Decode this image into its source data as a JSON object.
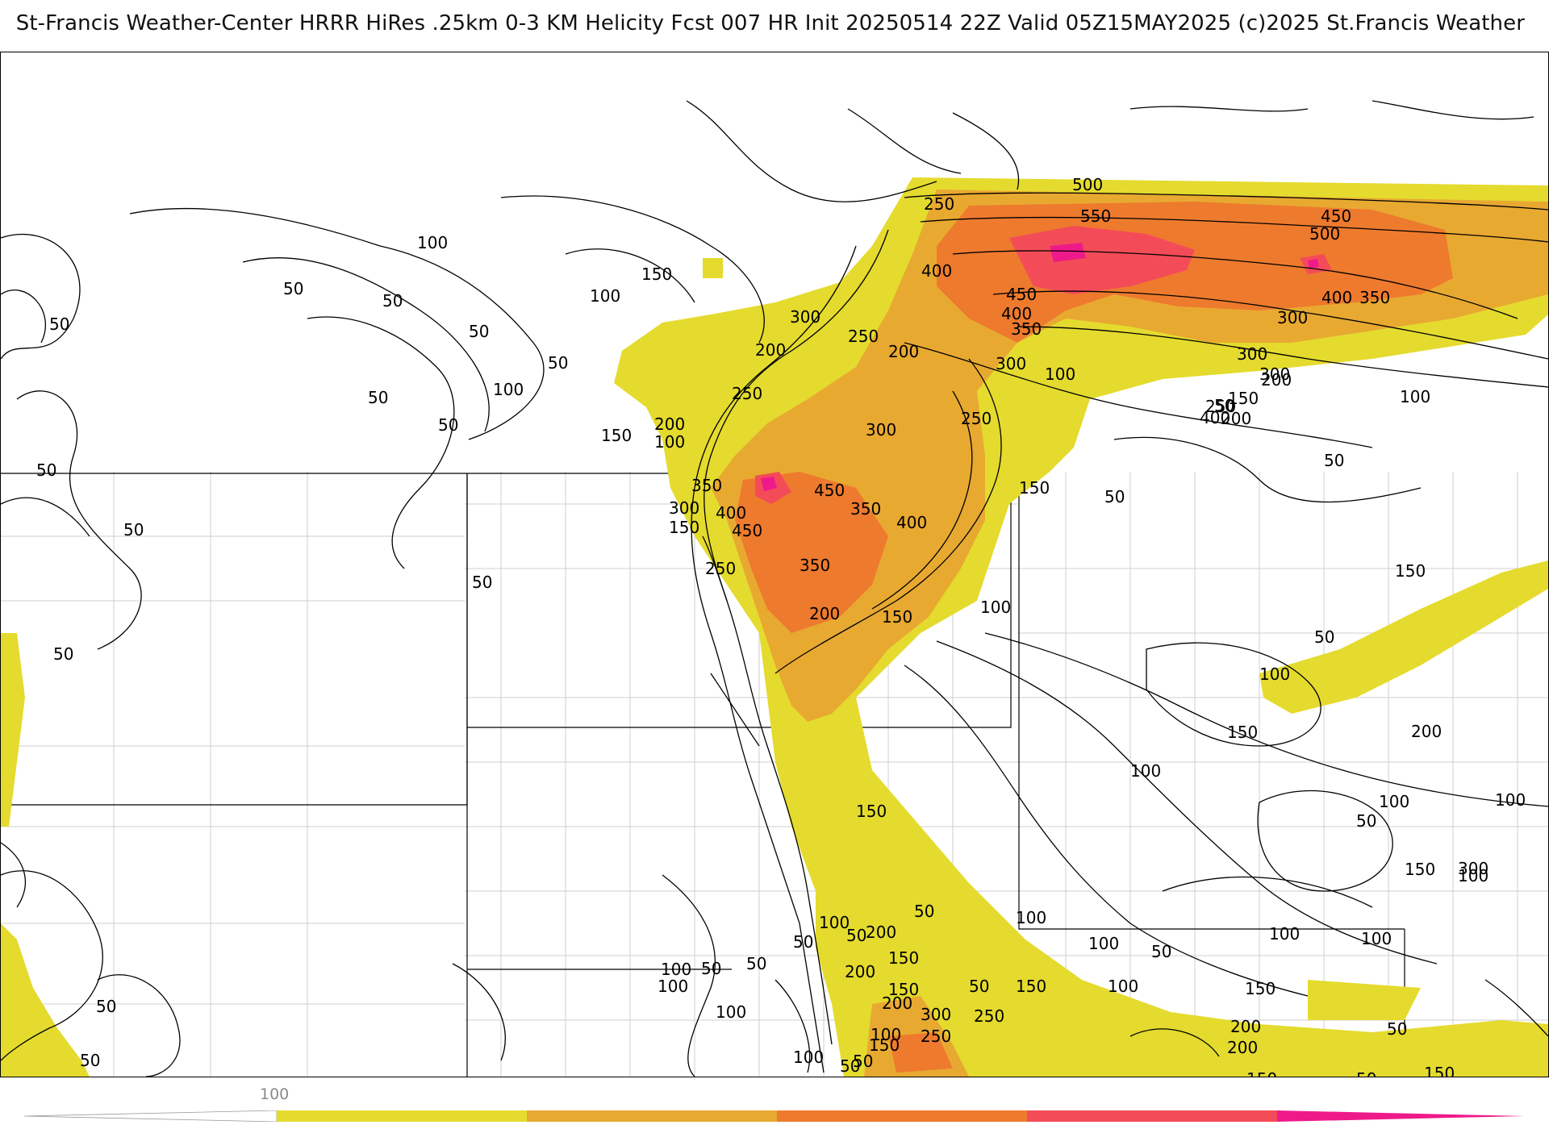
{
  "header": {
    "title": "St-Francis Weather-Center HRRR HiRes .25km 0-3 KM Helicity Fcst 007 HR Init 20250514 22Z  Valid 05Z15MAY2025     (c)2025 St.Francis Weather"
  },
  "colors": {
    "shade_100": "#e4db2e",
    "shade_250": "#e8a931",
    "shade_400": "#ee7a2e",
    "shade_550": "#f34c58",
    "shade_700": "#ef1a8a",
    "contour": "#000000",
    "borders": "#b8b8b8"
  },
  "colorbar": {
    "label": "100",
    "segments": [
      {
        "name": "below-100",
        "color": "#ffffff"
      },
      {
        "name": "100-250",
        "color": "#e4db2e"
      },
      {
        "name": "250-400",
        "color": "#e8a931"
      },
      {
        "name": "400-550",
        "color": "#ee7a2e"
      },
      {
        "name": "550-700",
        "color": "#f34c58"
      },
      {
        "name": "700-plus",
        "color": "#ef1a8a"
      }
    ]
  },
  "contour_labels": [
    "100",
    "50",
    "50",
    "50",
    "150",
    "100",
    "50",
    "50",
    "50",
    "50",
    "100",
    "50",
    "50",
    "50",
    "50",
    "500",
    "250",
    "550",
    "450",
    "500",
    "400",
    "450",
    "400",
    "350",
    "400",
    "350",
    "300",
    "300",
    "200",
    "250",
    "200",
    "300",
    "250",
    "150",
    "200",
    "100",
    "350",
    "300",
    "400",
    "300",
    "450",
    "350",
    "400",
    "150",
    "450",
    "250",
    "350",
    "200",
    "150",
    "250",
    "100",
    "300",
    "200",
    "400",
    "50",
    "150",
    "100",
    "50",
    "150",
    "250",
    "100",
    "300",
    "50",
    "200",
    "150",
    "50",
    "100",
    "150",
    "200",
    "100",
    "300",
    "100",
    "50",
    "250",
    "150",
    "100",
    "200",
    "200",
    "150",
    "250",
    "50",
    "50",
    "150",
    "150",
    "100",
    "100",
    "50",
    "150",
    "100",
    "100",
    "100",
    "50",
    "50",
    "50",
    "100",
    "50",
    "100",
    "100",
    "50",
    "200",
    "150",
    "100",
    "50",
    "250",
    "200",
    "150",
    "100",
    "50",
    "50",
    "300",
    "250",
    "200",
    "100",
    "50",
    "150",
    "100",
    "150",
    "50"
  ]
}
